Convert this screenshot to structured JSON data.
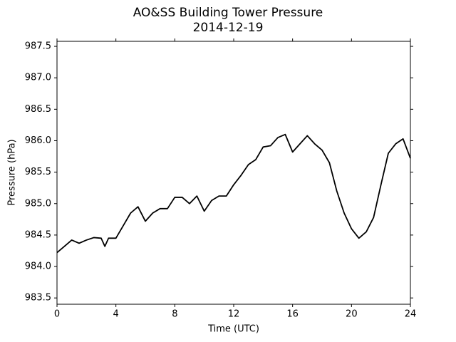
{
  "chart_data": {
    "type": "line",
    "title": "AO&SS Building Tower Pressure",
    "subtitle": "2014-12-19",
    "x_label": "Time (UTC)",
    "y_label": "Pressure (hPa)",
    "x": [
      0,
      0.5,
      1,
      1.5,
      2,
      2.5,
      3,
      3.25,
      3.5,
      4,
      4.5,
      5,
      5.5,
      6,
      6.5,
      7,
      7.5,
      8,
      8.5,
      9,
      9.5,
      10,
      10.5,
      11,
      11.5,
      12,
      12.5,
      13,
      13.5,
      14,
      14.5,
      15,
      15.5,
      16,
      16.5,
      17,
      17.5,
      18,
      18.5,
      19,
      19.5,
      20,
      20.5,
      21,
      21.5,
      22,
      22.5,
      23,
      23.5,
      24
    ],
    "series": [
      {
        "name": "Pressure",
        "color": "#000000",
        "values": [
          984.22,
          984.32,
          984.42,
          984.37,
          984.42,
          984.46,
          984.45,
          984.32,
          984.45,
          984.45,
          984.65,
          984.85,
          984.95,
          984.72,
          984.85,
          984.92,
          984.92,
          985.1,
          985.1,
          985.0,
          985.12,
          984.88,
          985.05,
          985.12,
          985.12,
          985.3,
          985.45,
          985.62,
          985.7,
          985.9,
          985.92,
          986.05,
          986.1,
          985.82,
          985.95,
          986.08,
          985.95,
          985.85,
          985.65,
          985.2,
          984.85,
          984.6,
          984.45,
          984.55,
          984.78,
          985.3,
          985.8,
          985.95,
          986.03,
          985.72
        ]
      }
    ],
    "xlim": [
      0,
      24
    ],
    "xticks": [
      0,
      4,
      8,
      12,
      16,
      20,
      24
    ],
    "ylim": [
      983.4,
      987.58
    ],
    "yticks": [
      983.5,
      {
        "value": 984,
        "label": "984.0"
      },
      984.5,
      {
        "value": 985,
        "label": "985.0"
      },
      985.5,
      {
        "value": 986,
        "label": "986.0"
      },
      986.5,
      {
        "value": 987,
        "label": "987.0"
      },
      987.5
    ],
    "grid": false
  }
}
